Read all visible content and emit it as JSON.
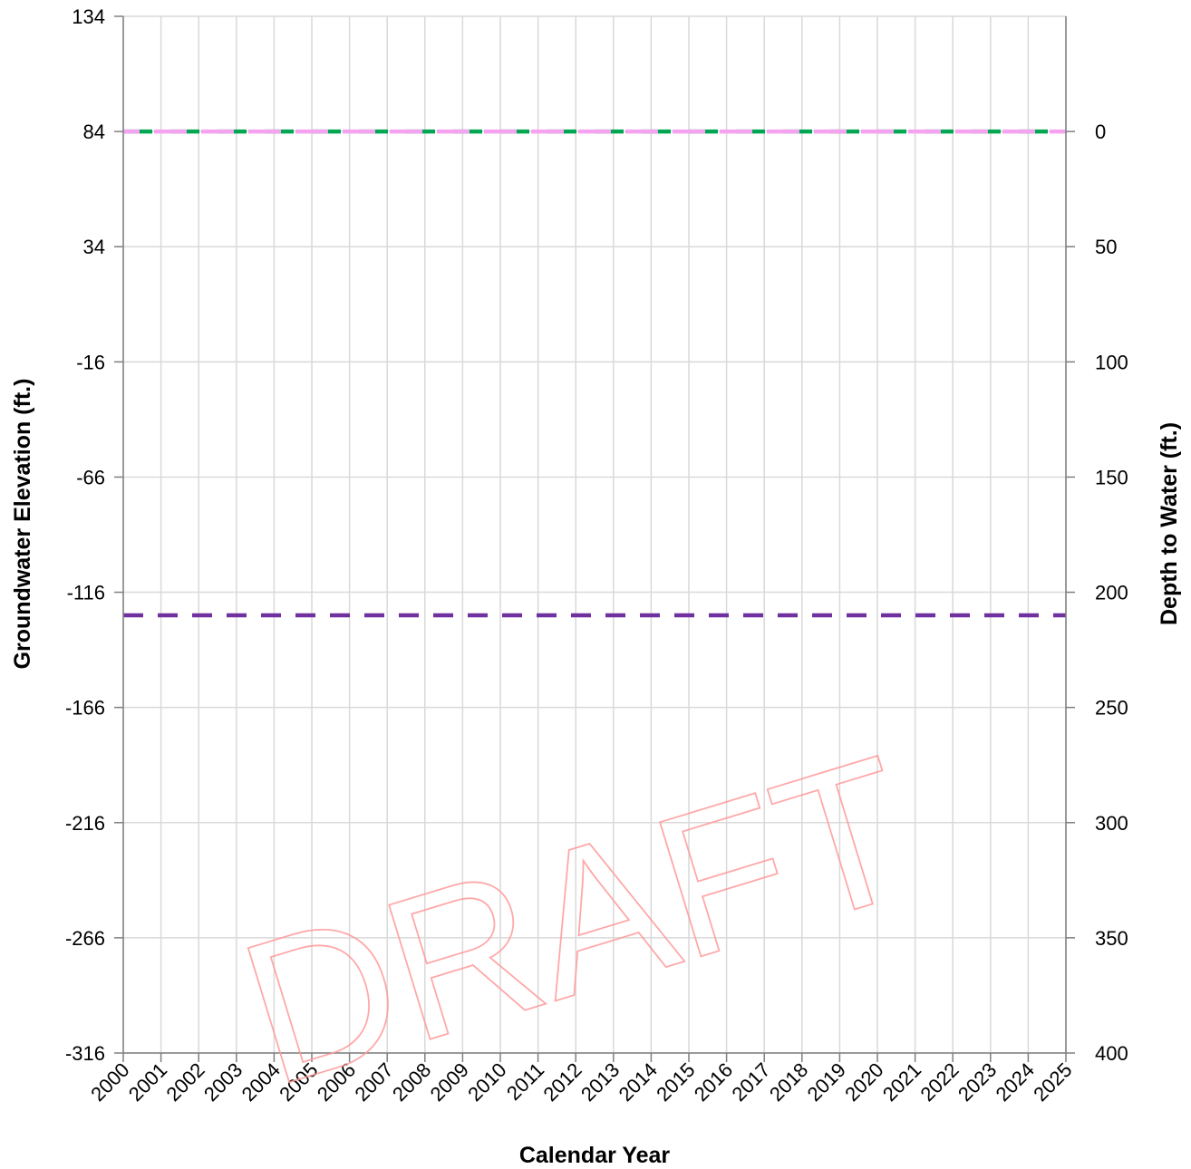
{
  "watermark": "DRAFT",
  "chart_data": {
    "type": "line",
    "x_axis": {
      "label": "Calendar Year",
      "range": [
        2000,
        2025
      ],
      "ticks": [
        "2000",
        "2001",
        "2002",
        "2003",
        "2004",
        "2005",
        "2006",
        "2007",
        "2008",
        "2009",
        "2010",
        "2011",
        "2012",
        "2013",
        "2014",
        "2015",
        "2016",
        "2017",
        "2018",
        "2019",
        "2020",
        "2021",
        "2022",
        "2023",
        "2024",
        "2025"
      ]
    },
    "y_left": {
      "label": "Groundwater Elevation (ft.)",
      "range": [
        -316,
        134
      ],
      "ticks": [
        "134",
        "84",
        "34",
        "-16",
        "-66",
        "-116",
        "-166",
        "-216",
        "-266",
        "-316"
      ]
    },
    "y_right": {
      "label": "Depth to Water (ft.)",
      "range": [
        400,
        0
      ],
      "ticks": [
        "0",
        "50",
        "100",
        "150",
        "200",
        "250",
        "300",
        "350",
        "400"
      ]
    },
    "grid": true,
    "series": [
      {
        "values": [
          [
            2000,
            84
          ],
          [
            2025,
            84
          ]
        ],
        "color": "#00a651",
        "dash": "dashed"
      },
      {
        "values": [
          [
            2000,
            84
          ],
          [
            2025,
            84
          ]
        ],
        "color": "#f5a3f0",
        "dash": "dashed"
      },
      {
        "values": [
          [
            2000,
            -126
          ],
          [
            2025,
            -126
          ]
        ],
        "color": "#7030a0",
        "dash": "dashed"
      }
    ]
  }
}
